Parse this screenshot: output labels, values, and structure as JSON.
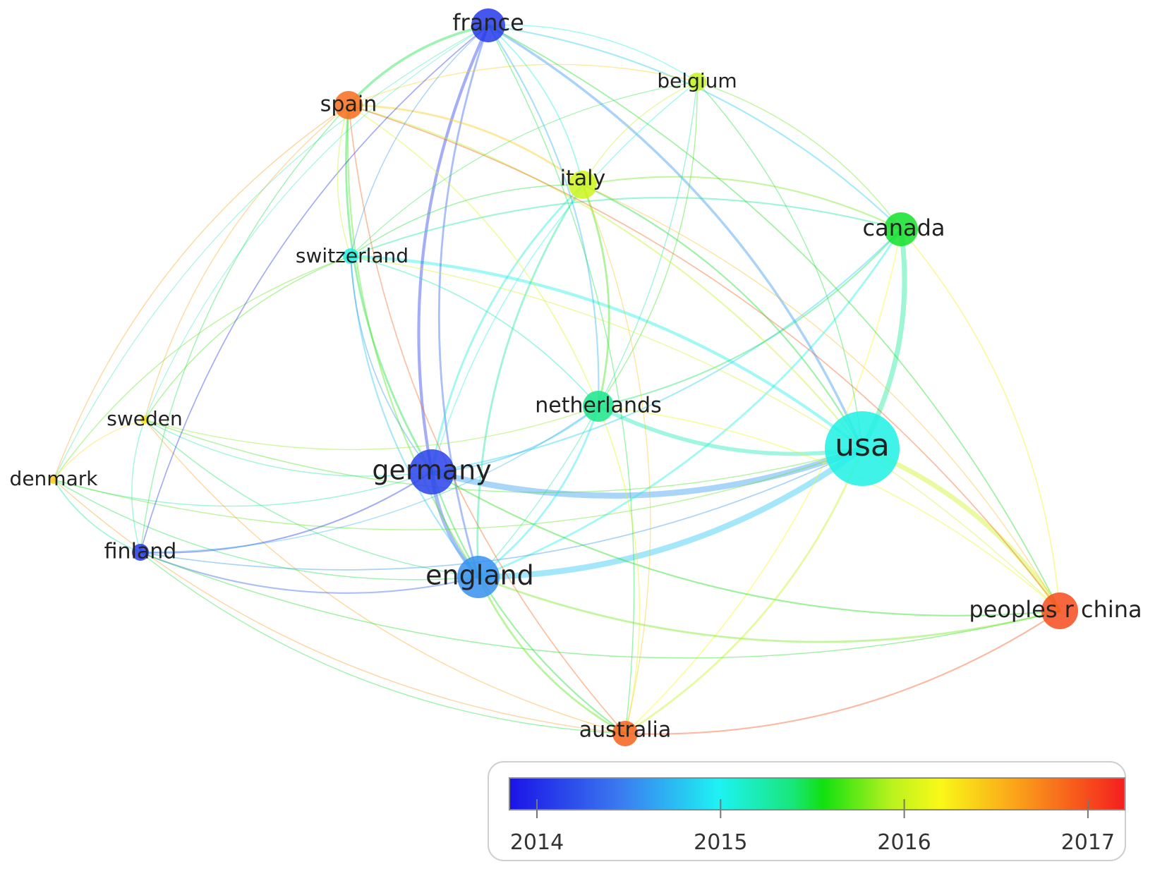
{
  "network": {
    "nodes": [
      {
        "id": "france",
        "label": "france",
        "year": 2014.05,
        "weight": 3
      },
      {
        "id": "belgium",
        "label": "belgium",
        "year": 2015.95,
        "weight": 1
      },
      {
        "id": "spain",
        "label": "spain",
        "year": 2016.85,
        "weight": 2
      },
      {
        "id": "italy",
        "label": "italy",
        "year": 2016.0,
        "weight": 2
      },
      {
        "id": "canada",
        "label": "canada",
        "year": 2015.5,
        "weight": 3
      },
      {
        "id": "switzerland",
        "label": "switzerland",
        "year": 2015.0,
        "weight": 1
      },
      {
        "id": "netherlands",
        "label": "netherlands",
        "year": 2015.3,
        "weight": 3
      },
      {
        "id": "sweden",
        "label": "sweden",
        "year": 2016.3,
        "weight": 0.5
      },
      {
        "id": "denmark",
        "label": "denmark",
        "year": 2016.4,
        "weight": 0.5
      },
      {
        "id": "germany",
        "label": "germany",
        "year": 2014.1,
        "weight": 5
      },
      {
        "id": "usa",
        "label": "usa",
        "year": 2015.0,
        "weight": 10
      },
      {
        "id": "finland",
        "label": "finland",
        "year": 2014.05,
        "weight": 1
      },
      {
        "id": "england",
        "label": "england",
        "year": 2014.5,
        "weight": 5
      },
      {
        "id": "peoples-r-china",
        "label": "peoples r china",
        "year": 2017.0,
        "weight": 4
      },
      {
        "id": "australia",
        "label": "australia",
        "year": 2016.9,
        "weight": 2
      }
    ],
    "legend": {
      "ticks": [
        "2014",
        "2015",
        "2016",
        "2017"
      ],
      "min_year": 2013.85,
      "max_year": 2017.2
    },
    "colors": {
      "2014": "#3a22f0",
      "2015": "#19e6f0",
      "2015.5": "#12e066",
      "2016": "#f4f21e",
      "2017": "#f23a28"
    }
  }
}
